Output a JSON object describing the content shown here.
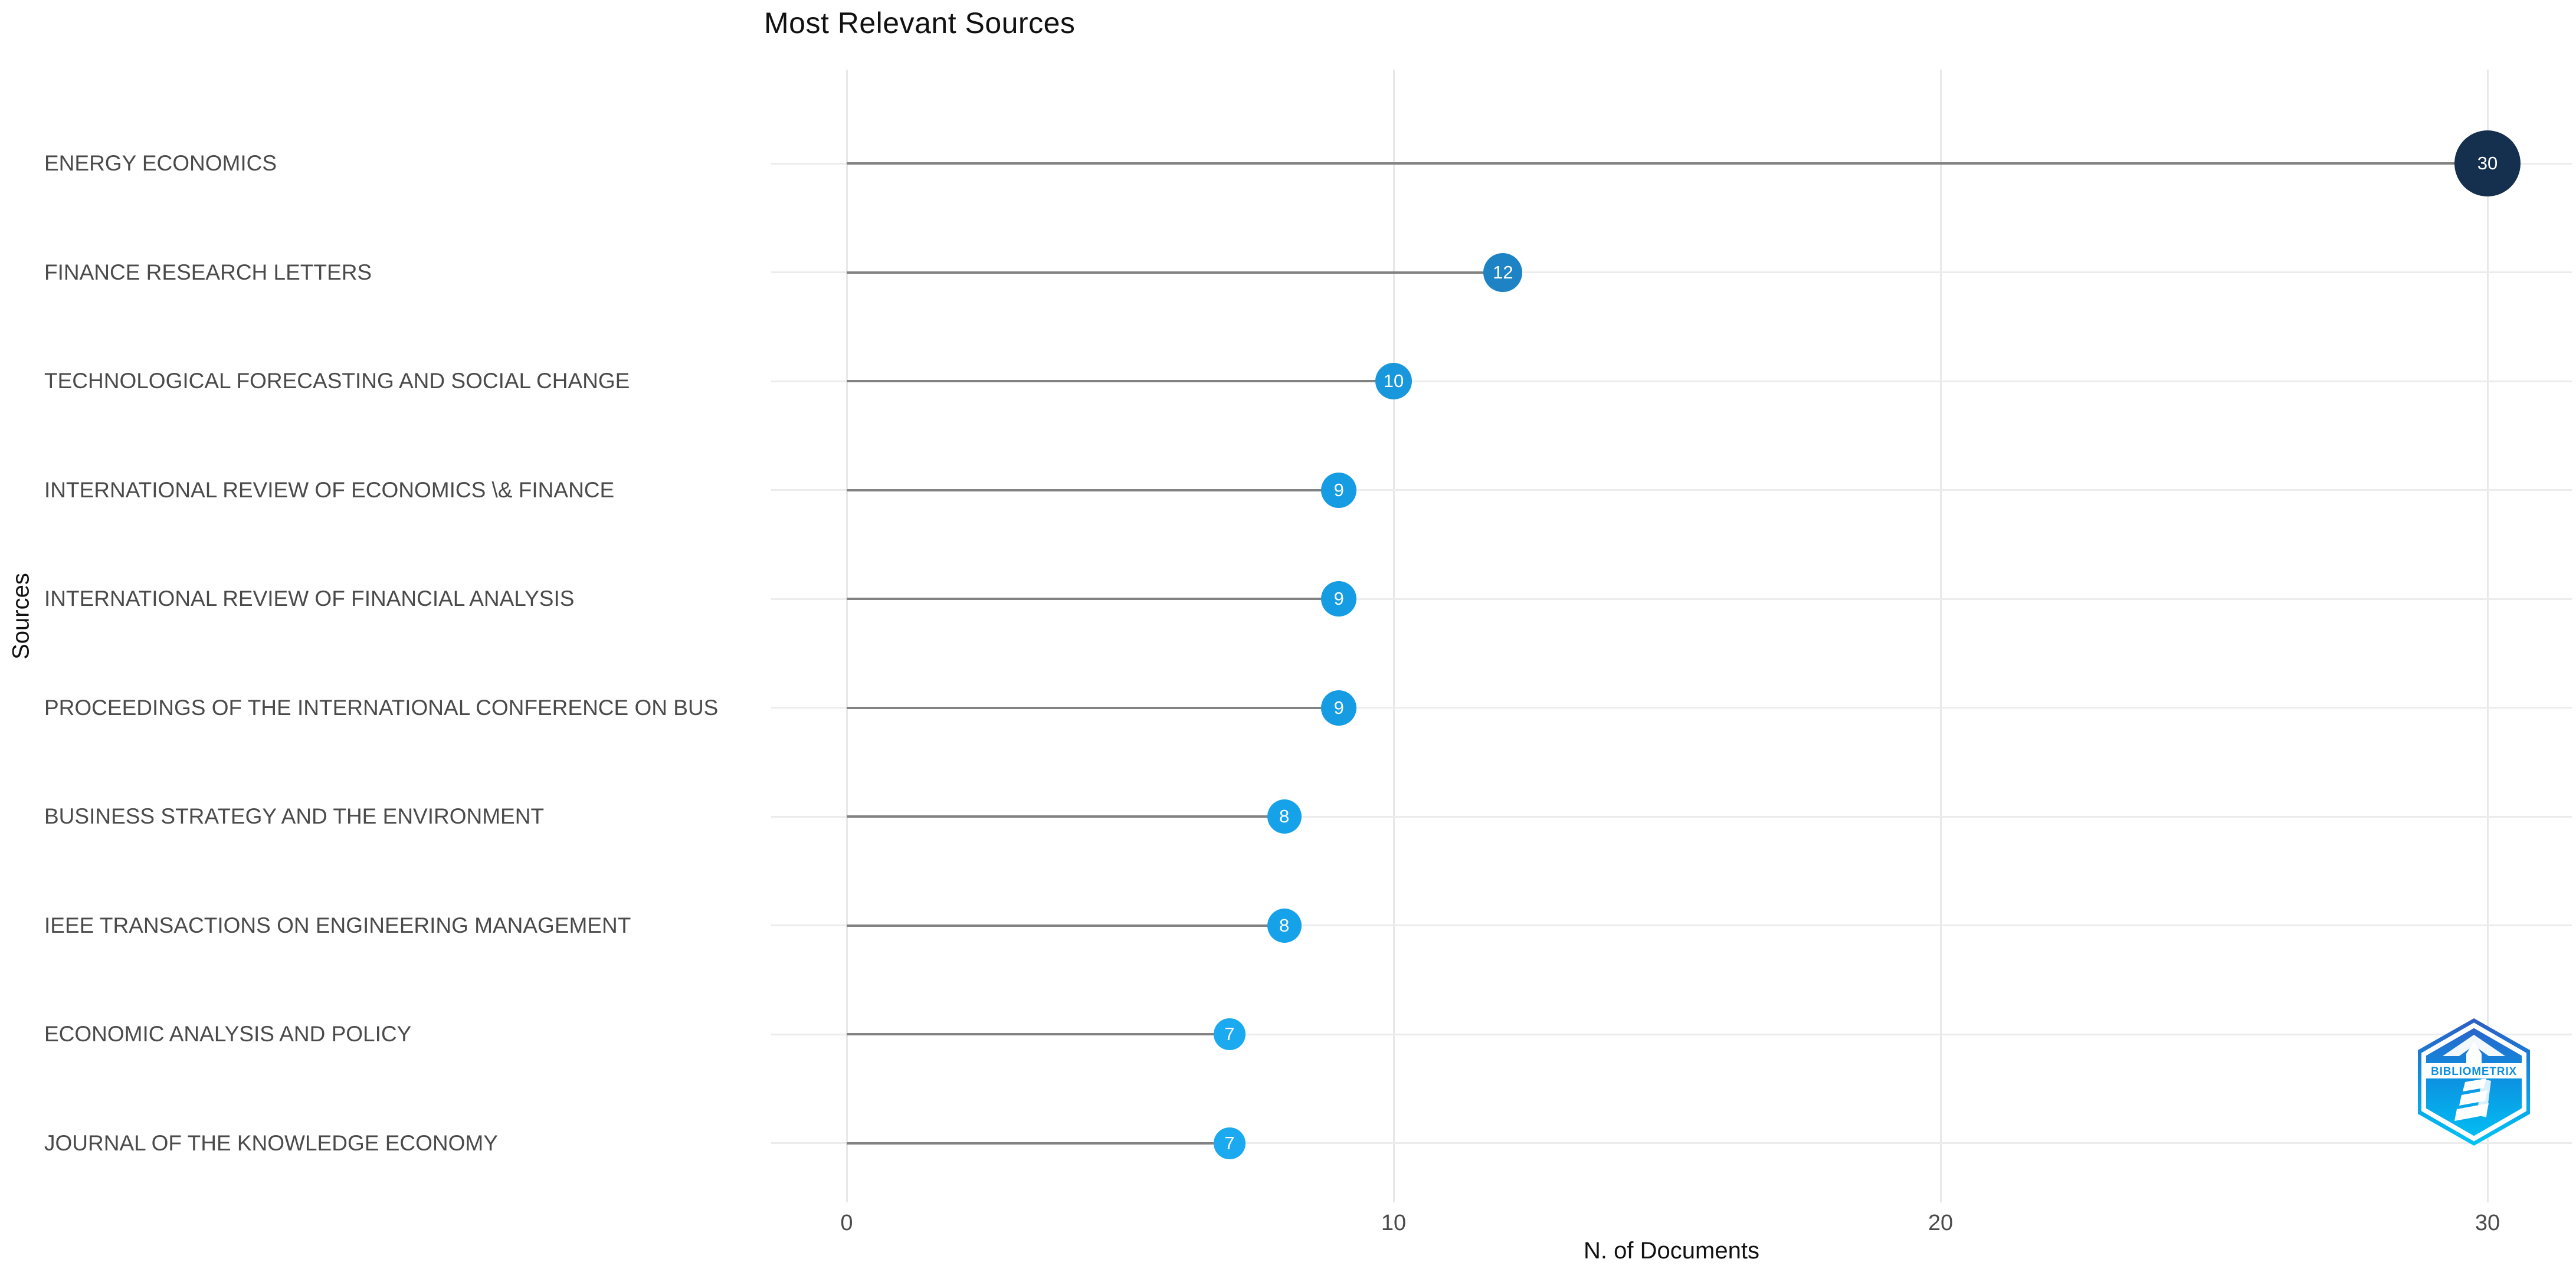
{
  "title": "Most Relevant Sources",
  "watermark": {
    "label": "BIBLIOMETRIX"
  },
  "chart_data": {
    "type": "scatter",
    "subtype": "lollipop-horizontal",
    "title": "Most Relevant Sources",
    "xlabel": "N. of Documents",
    "ylabel": "Sources",
    "categories": [
      "ENERGY ECONOMICS",
      "FINANCE RESEARCH LETTERS",
      "TECHNOLOGICAL FORECASTING AND SOCIAL CHANGE",
      "INTERNATIONAL REVIEW OF ECONOMICS \\& FINANCE",
      "INTERNATIONAL REVIEW OF FINANCIAL ANALYSIS",
      "PROCEEDINGS OF THE INTERNATIONAL CONFERENCE ON BUS",
      "BUSINESS STRATEGY AND THE ENVIRONMENT",
      "IEEE TRANSACTIONS ON ENGINEERING MANAGEMENT",
      "ECONOMIC ANALYSIS AND POLICY",
      "JOURNAL OF THE KNOWLEDGE ECONOMY"
    ],
    "values": [
      30,
      12,
      10,
      9,
      9,
      9,
      8,
      8,
      7,
      7
    ],
    "point_colors": [
      "#14304e",
      "#1d83c5",
      "#1897dc",
      "#159ce3",
      "#159ce3",
      "#159ce3",
      "#16a2e9",
      "#16a2e9",
      "#1ba9f0",
      "#1ba9f0"
    ],
    "point_radii": [
      56,
      33,
      31,
      30,
      30,
      30,
      29,
      29,
      27,
      27
    ],
    "xlim": [
      0,
      30
    ],
    "xticks": [
      0,
      10,
      20,
      30
    ],
    "grid": true,
    "legend": "none",
    "colors": {
      "stem": "#828282",
      "gridline": "#e8e8e8",
      "label_text": "#4a4a4a",
      "title_text": "#111111",
      "dot_label_text": "#ffffff",
      "background": "#ffffff",
      "logo_blue_top": "#2f5cc4",
      "logo_blue_mid": "#0d8fe0",
      "logo_cyan_bottom": "#00c4f5"
    }
  }
}
